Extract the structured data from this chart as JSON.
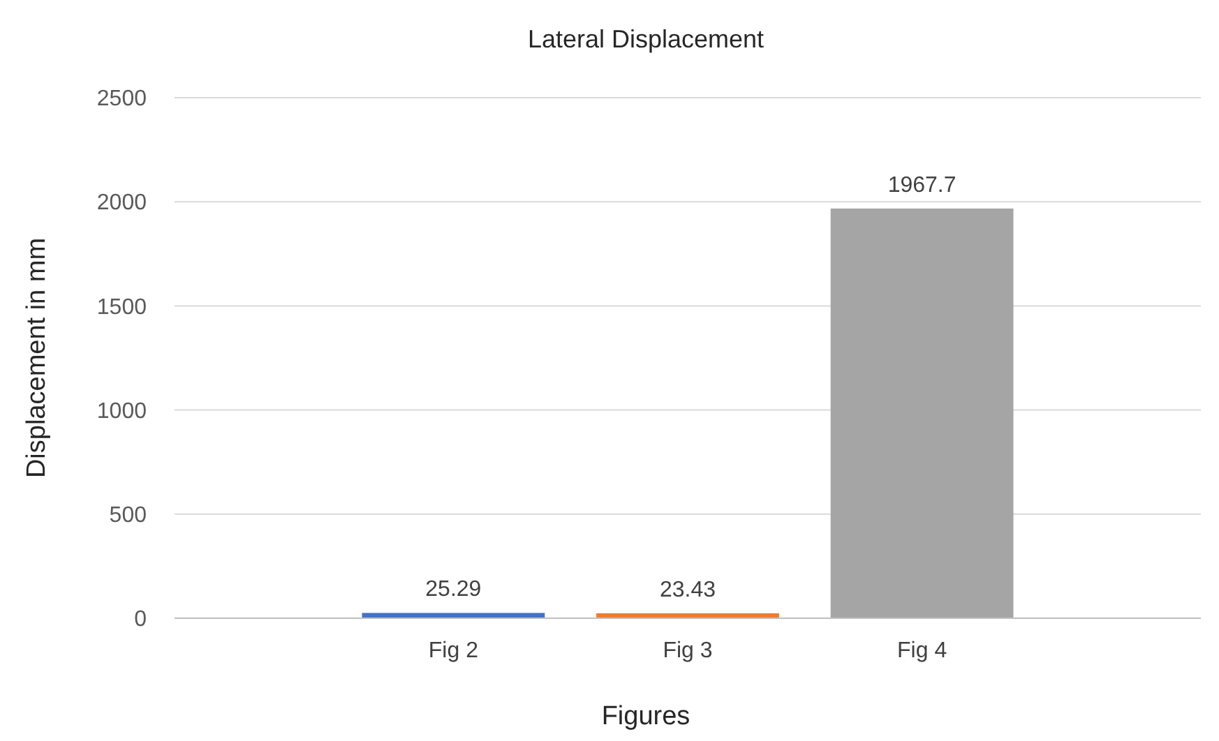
{
  "chart_data": {
    "type": "bar",
    "title": "Lateral Displacement",
    "xlabel": "Figures",
    "ylabel": "Displacement in mm",
    "categories": [
      "Fig 2",
      "Fig 3",
      "Fig 4"
    ],
    "values": [
      25.29,
      23.43,
      1967.7
    ],
    "colors": [
      "#4472c4",
      "#ed7d31",
      "#a5a5a5"
    ],
    "ylim": [
      0,
      2500
    ],
    "yticks": [
      0,
      500,
      1000,
      1500,
      2000,
      2500
    ],
    "grid": "y",
    "data_labels": true
  }
}
